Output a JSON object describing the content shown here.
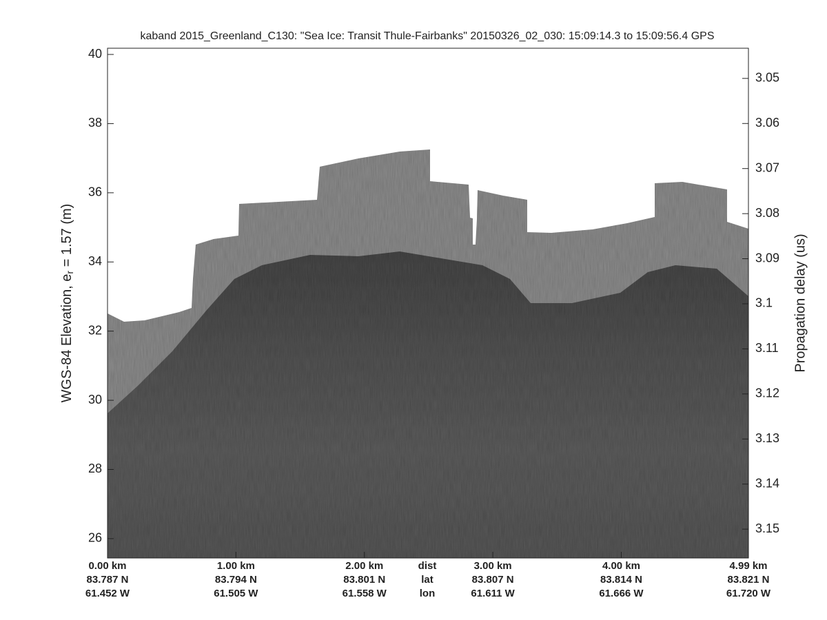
{
  "chart_data": {
    "type": "echogram",
    "title": "kaband 2015_Greenland_C130: \"Sea Ice: Transit Thule-Fairbanks\"  20150326_02_030: 15:09:14.3 to 15:09:56.4 GPS",
    "y_label": {
      "prefix": "WGS-84 Elevation, e",
      "subscript": "r",
      "suffix": " = 1.57 (m)"
    },
    "y2_label": "Propagation delay (us)",
    "ylim": [
      25.44,
      40.18
    ],
    "yticks": [
      26,
      28,
      30,
      32,
      34,
      36,
      38,
      40
    ],
    "y2lim": [
      3.1564,
      3.0433
    ],
    "y2ticks": [
      3.05,
      3.06,
      3.07,
      3.08,
      3.09,
      {
        "value": 3.1,
        "label": "3.1"
      },
      3.11,
      3.12,
      3.13,
      3.14,
      3.15
    ],
    "xlim": [
      0,
      4.99
    ],
    "xticks": [
      {
        "value": 0,
        "label": "0.00 km"
      },
      {
        "value": 1,
        "label": "1.00 km"
      },
      {
        "value": 2,
        "label": "2.00 km"
      },
      {
        "value": 3,
        "label": "3.00 km"
      },
      {
        "value": 4,
        "label": "4.00 km"
      },
      {
        "value": 4.99,
        "label": "4.99 km"
      }
    ],
    "lat": [
      "83.787 N",
      "83.794 N",
      "83.801 N",
      "83.807 N",
      "83.814 N",
      "83.821 N"
    ],
    "lon": [
      "61.452 W",
      "61.505 W",
      "61.558 W",
      "61.611 W",
      "61.666 W",
      "61.720 W"
    ],
    "row_labels": [
      "dist",
      "lat",
      "lon"
    ]
  }
}
